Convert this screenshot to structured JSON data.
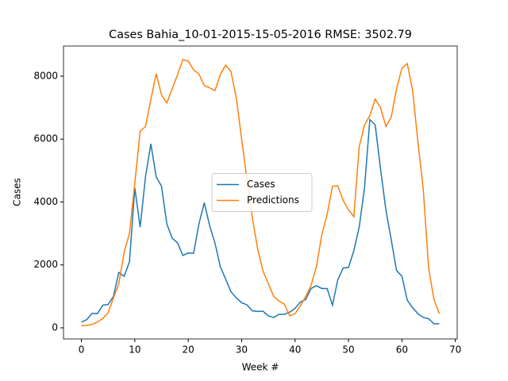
{
  "chart_data": {
    "type": "line",
    "title": "Cases Bahia_10-01-2015-15-05-2016 RMSE: 3502.79",
    "x_label": "Week #",
    "y_label": "Cases",
    "x": [
      0,
      1,
      2,
      3,
      4,
      5,
      6,
      7,
      8,
      9,
      10,
      11,
      12,
      13,
      14,
      15,
      16,
      17,
      18,
      19,
      20,
      21,
      22,
      23,
      24,
      25,
      26,
      27,
      28,
      29,
      30,
      31,
      32,
      33,
      34,
      35,
      36,
      37,
      38,
      39,
      40,
      41,
      42,
      43,
      44,
      45,
      46,
      47,
      48,
      49,
      50,
      51,
      52,
      53,
      54,
      55,
      56,
      57,
      58,
      59,
      60,
      61,
      62,
      63,
      64,
      65,
      66,
      67
    ],
    "series": [
      {
        "name": "Cases",
        "color": "#1f77b4",
        "values": [
          180,
          260,
          460,
          450,
          720,
          740,
          1000,
          1760,
          1640,
          2100,
          4450,
          3200,
          4800,
          5850,
          4800,
          4500,
          3300,
          2850,
          2700,
          2300,
          2380,
          2370,
          3300,
          3980,
          3250,
          2700,
          1950,
          1550,
          1150,
          950,
          800,
          730,
          540,
          520,
          530,
          380,
          330,
          430,
          430,
          500,
          620,
          820,
          900,
          1250,
          1340,
          1250,
          1250,
          720,
          1530,
          1900,
          1920,
          2450,
          3200,
          4450,
          6620,
          6450,
          5050,
          3750,
          2800,
          1820,
          1640,
          880,
          640,
          450,
          330,
          290,
          130,
          130
        ]
      },
      {
        "name": "Predictions",
        "color": "#ff7f0e",
        "values": [
          70,
          80,
          110,
          180,
          300,
          480,
          950,
          1400,
          2400,
          3000,
          4600,
          6250,
          6400,
          7250,
          8080,
          7400,
          7150,
          7600,
          8050,
          8530,
          8480,
          8200,
          8070,
          7700,
          7630,
          7540,
          8050,
          8350,
          8150,
          7300,
          6000,
          4700,
          3500,
          2500,
          1800,
          1400,
          1000,
          850,
          750,
          380,
          450,
          700,
          1000,
          1350,
          1950,
          2950,
          3600,
          4500,
          4510,
          4050,
          3750,
          3530,
          5750,
          6450,
          6750,
          7270,
          7000,
          6400,
          6700,
          7600,
          8250,
          8400,
          7550,
          5900,
          4400,
          1900,
          900,
          450
        ]
      }
    ],
    "xlim": [
      -3.35,
      70.35
    ],
    "xticks": [
      0,
      10,
      20,
      30,
      40,
      50,
      60,
      70
    ],
    "ylim": [
      -353,
      8958
    ],
    "yticks": [
      0,
      2000,
      4000,
      6000,
      8000
    ],
    "legend": "center"
  }
}
